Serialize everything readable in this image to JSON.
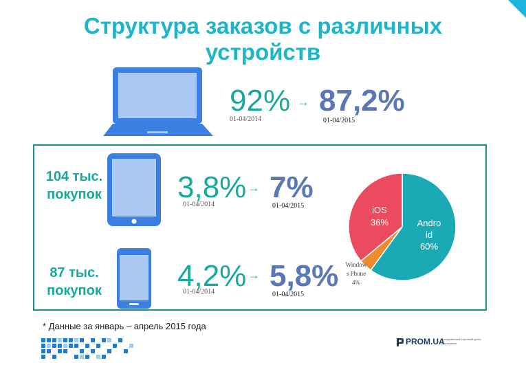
{
  "title": {
    "line1": "Структура заказов с различных",
    "line2": "устройств"
  },
  "laptop": {
    "old_pct": "92%",
    "old_date": "01-04/2014",
    "new_pct": "87,2%",
    "new_date": "01-04/2015"
  },
  "tablet": {
    "count_line1": "104 тыс.",
    "count_line2": "покупок",
    "old_pct": "3,8%",
    "old_date": "01-04/2014",
    "new_pct": "7%",
    "new_date": "01-04/2015"
  },
  "phone": {
    "count_line1": "87 тыс.",
    "count_line2": "покупок",
    "old_pct": "4,2%",
    "old_date": "01-04/2014",
    "new_pct": "5,8%",
    "new_date": "01-04/2015"
  },
  "arrow_glyph": "→",
  "chart_data": {
    "type": "pie",
    "slices": [
      {
        "label_line1": "Andro",
        "label_line2": "id",
        "value_label": "60%",
        "value": 60,
        "color": "#1aaab5"
      },
      {
        "label_line1": "Window",
        "label_line2": "s Phone",
        "value_label": "4%",
        "value": 4,
        "color": "#f08a2e"
      },
      {
        "label_line1": "iOS",
        "label_line2": "",
        "value_label": "36%",
        "value": 36,
        "color": "#ec4a60"
      }
    ]
  },
  "footnote": "* Данные за  январь – апрель 2015 года",
  "brand": {
    "name": "PROM.UA",
    "tagline": "Всеукраинский торговый центр в интернете"
  },
  "colors": {
    "title": "#1fb5c9",
    "device_blue": "#3b7fe0",
    "accent_teal": "#17a99d",
    "new_pct": "#5b78b6",
    "frame": "#1a8f92",
    "corner": "#1cb6da"
  }
}
